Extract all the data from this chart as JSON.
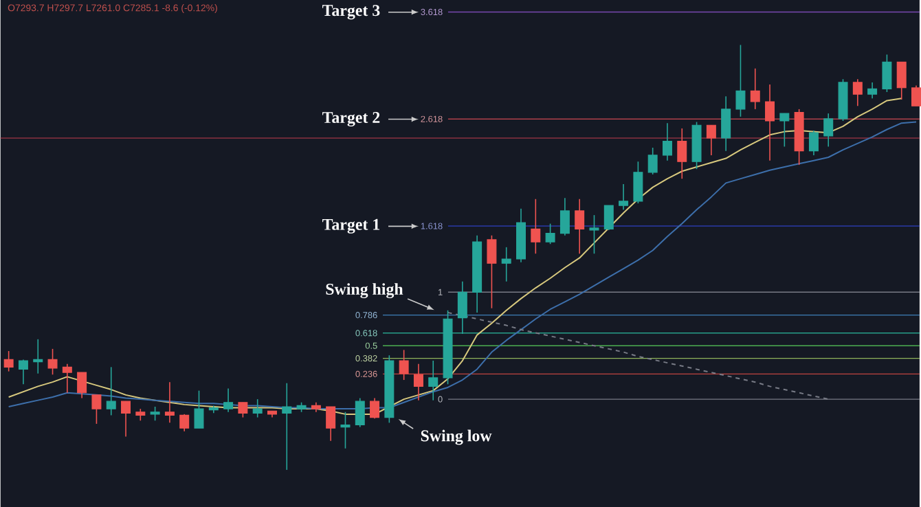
{
  "chart_data": {
    "type": "candlestick",
    "categories": [
      null,
      null,
      null,
      null,
      null,
      null,
      null,
      null,
      null,
      null,
      null,
      null,
      null,
      null,
      null,
      null,
      null,
      null,
      null,
      null,
      null,
      null,
      null,
      null,
      null,
      null,
      null,
      null,
      null,
      null,
      null,
      null,
      null,
      null,
      null,
      null,
      null,
      null,
      null,
      null,
      null,
      null,
      null,
      null,
      null,
      null,
      null,
      null,
      null,
      null,
      null,
      null,
      null,
      null,
      null,
      null,
      null,
      null,
      null,
      null,
      null,
      null,
      null
    ],
    "ohlc": [
      [
        0.37,
        0.45,
        0.26,
        0.3
      ],
      [
        0.28,
        0.37,
        0.14,
        0.36
      ],
      [
        0.35,
        0.56,
        0.24,
        0.37
      ],
      [
        0.37,
        0.47,
        0.23,
        0.29
      ],
      [
        0.3,
        0.33,
        0.06,
        0.25
      ],
      [
        0.25,
        0.25,
        0.01,
        0.06
      ],
      [
        0.04,
        0.04,
        -0.23,
        -0.09
      ],
      [
        -0.09,
        0.3,
        -0.15,
        -0.02
      ],
      [
        -0.02,
        -0.02,
        -0.35,
        -0.13
      ],
      [
        -0.12,
        -0.09,
        -0.2,
        -0.15
      ],
      [
        -0.14,
        -0.07,
        -0.2,
        -0.12
      ],
      [
        -0.12,
        0.16,
        -0.22,
        -0.15
      ],
      [
        -0.15,
        -0.14,
        -0.3,
        -0.27
      ],
      [
        -0.27,
        0.08,
        -0.27,
        -0.09
      ],
      [
        -0.1,
        -0.06,
        -0.13,
        -0.08
      ],
      [
        -0.09,
        0.1,
        -0.12,
        -0.03
      ],
      [
        -0.03,
        -0.03,
        -0.17,
        -0.13
      ],
      [
        -0.13,
        0.0,
        -0.17,
        -0.09
      ],
      [
        -0.11,
        -0.11,
        -0.17,
        -0.14
      ],
      [
        -0.13,
        0.15,
        -0.66,
        -0.07
      ],
      [
        -0.09,
        -0.03,
        -0.12,
        -0.06
      ],
      [
        -0.06,
        -0.03,
        -0.12,
        -0.09
      ],
      [
        -0.07,
        -0.07,
        -0.39,
        -0.27
      ],
      [
        -0.26,
        -0.12,
        -0.46,
        -0.24
      ],
      [
        -0.24,
        0.01,
        -0.26,
        -0.02
      ],
      [
        -0.02,
        0.01,
        -0.18,
        -0.17
      ],
      [
        -0.17,
        0.41,
        -0.22,
        0.36
      ],
      [
        0.36,
        0.46,
        0.18,
        0.24
      ],
      [
        0.23,
        0.33,
        -0.01,
        0.12
      ],
      [
        0.12,
        0.36,
        -0.01,
        0.2
      ],
      [
        0.2,
        0.83,
        0.14,
        0.75
      ],
      [
        0.76,
        1.1,
        0.61,
        1.0
      ],
      [
        1.0,
        1.53,
        0.81,
        1.47
      ],
      [
        1.49,
        1.53,
        0.85,
        1.27
      ],
      [
        1.27,
        1.42,
        1.1,
        1.31
      ],
      [
        1.31,
        1.78,
        1.28,
        1.65
      ],
      [
        1.59,
        1.87,
        1.36,
        1.47
      ],
      [
        1.47,
        1.64,
        1.45,
        1.55
      ],
      [
        1.55,
        1.88,
        1.53,
        1.76
      ],
      [
        1.76,
        1.87,
        1.36,
        1.59
      ],
      [
        1.58,
        1.72,
        1.36,
        1.6
      ],
      [
        1.59,
        1.81,
        1.58,
        1.81
      ],
      [
        1.81,
        2.01,
        1.77,
        1.85
      ],
      [
        1.85,
        2.22,
        1.83,
        2.12
      ],
      [
        2.12,
        2.35,
        2.1,
        2.28
      ],
      [
        2.28,
        2.58,
        2.23,
        2.41
      ],
      [
        2.41,
        2.53,
        2.06,
        2.22
      ],
      [
        2.22,
        2.59,
        2.15,
        2.56
      ],
      [
        2.56,
        2.56,
        2.28,
        2.44
      ],
      [
        2.44,
        2.83,
        2.32,
        2.71
      ],
      [
        2.71,
        3.31,
        2.64,
        2.88
      ],
      [
        2.88,
        3.09,
        2.71,
        2.78
      ],
      [
        2.78,
        2.94,
        2.23,
        2.6
      ],
      [
        2.6,
        2.67,
        2.36,
        2.67
      ],
      [
        2.68,
        2.71,
        2.19,
        2.32
      ],
      [
        2.32,
        2.51,
        2.28,
        2.49
      ],
      [
        2.46,
        2.67,
        2.36,
        2.62
      ],
      [
        2.62,
        2.99,
        2.6,
        2.96
      ],
      [
        2.96,
        2.99,
        2.74,
        2.85
      ],
      [
        2.85,
        2.96,
        2.81,
        2.9
      ],
      [
        2.9,
        3.22,
        2.87,
        3.15
      ],
      [
        3.15,
        3.15,
        2.8,
        2.91
      ],
      [
        2.91,
        2.93,
        2.74,
        2.74
      ]
    ],
    "colors": [
      "#ef5350",
      "#26a69a",
      "#26a69a",
      "#ef5350",
      "#ef5350",
      "#ef5350",
      "#ef5350",
      "#26a69a",
      "#ef5350",
      "#ef5350",
      "#26a69a",
      "#ef5350",
      "#ef5350",
      "#26a69a",
      "#26a69a",
      "#26a69a",
      "#ef5350",
      "#26a69a",
      "#ef5350",
      "#26a69a",
      "#26a69a",
      "#ef5350",
      "#ef5350",
      "#26a69a",
      "#26a69a",
      "#ef5350",
      "#26a69a",
      "#ef5350",
      "#ef5350",
      "#26a69a",
      "#26a69a",
      "#26a69a",
      "#26a69a",
      "#ef5350",
      "#26a69a",
      "#26a69a",
      "#ef5350",
      "#26a69a",
      "#26a69a",
      "#ef5350",
      "#26a69a",
      "#26a69a",
      "#26a69a",
      "#26a69a",
      "#26a69a",
      "#26a69a",
      "#ef5350",
      "#26a69a",
      "#ef5350",
      "#26a69a",
      "#26a69a",
      "#ef5350",
      "#ef5350",
      "#26a69a",
      "#ef5350",
      "#26a69a",
      "#26a69a",
      "#26a69a",
      "#ef5350",
      "#26a69a",
      "#26a69a",
      "#ef5350",
      "#ef5350"
    ],
    "series": [
      {
        "type": "line",
        "color": "#d8c97e",
        "values": [
          0.02,
          0.07,
          0.12,
          0.16,
          0.21,
          0.17,
          0.13,
          0.09,
          0.04,
          0.01,
          -0.01,
          -0.03,
          -0.05,
          -0.06,
          -0.07,
          -0.08,
          -0.08,
          -0.08,
          -0.08,
          -0.09,
          -0.09,
          -0.09,
          -0.11,
          -0.14,
          -0.14,
          -0.14,
          -0.07,
          0.0,
          0.04,
          0.08,
          0.19,
          0.36,
          0.6,
          0.71,
          0.83,
          0.94,
          1.04,
          1.13,
          1.23,
          1.32,
          1.46,
          1.6,
          1.74,
          1.87,
          1.98,
          2.06,
          2.13,
          2.17,
          2.21,
          2.25,
          2.33,
          2.4,
          2.47,
          2.5,
          2.51,
          2.5,
          2.49,
          2.55,
          2.64,
          2.71,
          2.79,
          2.81,
          null
        ]
      },
      {
        "type": "line",
        "color": "#3d6fab",
        "values": [
          -0.07,
          -0.04,
          -0.01,
          0.02,
          0.06,
          0.05,
          0.04,
          0.03,
          0.01,
          0.0,
          -0.01,
          -0.02,
          -0.03,
          -0.04,
          -0.04,
          -0.05,
          -0.06,
          -0.06,
          -0.07,
          -0.08,
          -0.08,
          -0.09,
          -0.09,
          -0.09,
          -0.09,
          -0.08,
          -0.08,
          -0.03,
          0.02,
          0.07,
          0.11,
          0.18,
          0.28,
          0.44,
          0.55,
          0.65,
          0.75,
          0.84,
          0.91,
          0.98,
          1.06,
          1.14,
          1.22,
          1.3,
          1.39,
          1.52,
          1.64,
          1.77,
          1.89,
          2.02,
          2.06,
          2.1,
          2.14,
          2.17,
          2.2,
          2.23,
          2.26,
          2.33,
          2.39,
          2.45,
          2.52,
          2.58,
          2.59
        ]
      },
      {
        "type": "line",
        "color": "#787b86",
        "line_style": "dashed",
        "values": [
          null,
          null,
          null,
          null,
          null,
          null,
          null,
          null,
          null,
          null,
          null,
          null,
          null,
          null,
          null,
          null,
          null,
          null,
          null,
          null,
          null,
          null,
          null,
          null,
          null,
          null,
          null,
          null,
          null,
          null,
          0.81,
          0.78,
          0.75,
          0.72,
          0.69,
          0.65,
          0.62,
          0.59,
          0.56,
          0.53,
          0.5,
          0.47,
          0.44,
          0.4,
          0.37,
          0.34,
          0.31,
          0.28,
          0.25,
          0.22,
          0.19,
          0.16,
          0.12,
          0.09,
          0.06,
          0.03,
          0.0,
          null,
          null,
          null,
          null,
          null,
          null
        ]
      }
    ],
    "ylim": [
      -1.01,
      3.73
    ],
    "tick_labels": false,
    "ref_lines": [
      {
        "axis": "y",
        "value": 0,
        "label": "0",
        "color": "#787b86"
      },
      {
        "axis": "y",
        "value": 0.236,
        "label": "0.236",
        "color": "#c0443f"
      },
      {
        "axis": "y",
        "value": 0.382,
        "label": "0.382",
        "color": "#8fb35a"
      },
      {
        "axis": "y",
        "value": 0.5,
        "label": "0.5",
        "color": "#4caf50"
      },
      {
        "axis": "y",
        "value": 0.618,
        "label": "0.618",
        "color": "#26a08a"
      },
      {
        "axis": "y",
        "value": 0.786,
        "label": "0.786",
        "color": "#3f7fb8"
      },
      {
        "axis": "y",
        "value": 1,
        "label": "1",
        "color": "#787b86"
      },
      {
        "axis": "y",
        "value": 1.618,
        "label": "1.618",
        "color": "#2a3aa8"
      },
      {
        "axis": "y",
        "value": 2.44,
        "color": "#8a3040"
      },
      {
        "axis": "y",
        "value": 2.618,
        "label": "2.618",
        "color": "#b0404a"
      },
      {
        "axis": "y",
        "value": 3.618,
        "label": "3.618",
        "color": "#7a4ab0"
      }
    ],
    "annotations": [
      "O7293.7 H7297.7 L7261.0 C7285.1 -8.6 (-0.12%)",
      "Target 3",
      "Target 2",
      "Target 1",
      "Swing high",
      "Swing low"
    ]
  }
}
